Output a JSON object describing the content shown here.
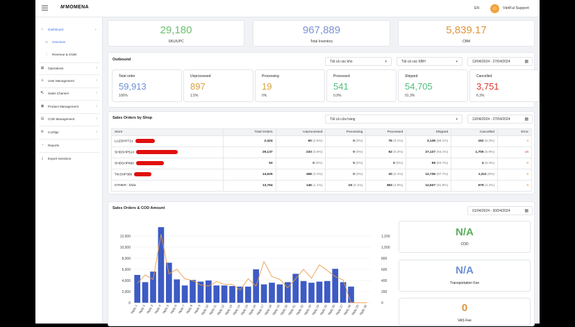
{
  "header": {
    "brand": "MOMENA",
    "lang": "EN",
    "user": "VietFul Support"
  },
  "sidebar": {
    "items": [
      {
        "label": "Dashboard",
        "icon": "home-icon",
        "chevron": "⌄"
      },
      {
        "label": "Overview",
        "icon": "monitor-icon"
      },
      {
        "label": "Revenue & Order",
        "icon": "chart-icon"
      },
      {
        "label": "Operations",
        "icon": "grid-icon",
        "chevron": "‹"
      },
      {
        "label": "User Management",
        "icon": "user-icon",
        "chevron": "‹"
      },
      {
        "label": "Sales Channel",
        "icon": "cart-icon",
        "chevron": "‹"
      },
      {
        "label": "Product Management",
        "icon": "box-icon",
        "chevron": "‹"
      },
      {
        "label": "COD Management",
        "icon": "cash-icon",
        "chevron": "‹"
      },
      {
        "label": "Configs",
        "icon": "gear-icon",
        "chevron": "‹"
      },
      {
        "label": "Reports",
        "icon": "report-icon"
      },
      {
        "label": "Export Sessions",
        "icon": "download-icon"
      }
    ]
  },
  "top_metrics": [
    {
      "value": "29,180",
      "label": "SKU/UPC",
      "color": "#6bbf6b"
    },
    {
      "value": "967,889",
      "label": "Total Inventory",
      "color": "#7b93d6"
    },
    {
      "value": "5,839.17",
      "label": "CBM",
      "color": "#e0953a"
    }
  ],
  "outbound": {
    "title": "Outbound",
    "warehouse_select": "Tất cả các kho",
    "channel_select": "Tất cả các KBH",
    "date_range": "13/04/2024 - 27/04/2024",
    "stats": [
      {
        "title": "Total order",
        "value": "59,913",
        "pct": "100%",
        "color": "#6b8fd6"
      },
      {
        "title": "Unprocessed",
        "value": "897",
        "pct": "1.5%",
        "color": "#d9a03a"
      },
      {
        "title": "Processing",
        "value": "19",
        "pct": "0%",
        "color": "#d9a03a"
      },
      {
        "title": "Processed",
        "value": "541",
        "pct": "0.9%",
        "color": "#4cbf7a"
      },
      {
        "title": "Shipped",
        "value": "54,705",
        "pct": "91.3%",
        "color": "#4cbf7a"
      },
      {
        "title": "Cancelled",
        "value": "3,751",
        "pct": "6.3%",
        "color": "#d9342b"
      }
    ]
  },
  "sales_by_shop": {
    "title": "Sales Orders by Shop",
    "shop_select": "Tất cả cửa hàng",
    "date_range": "13/04/2024 - 27/04/2024",
    "columns": [
      "Store",
      "Total Orders",
      "Unprocessed",
      "Processing",
      "Processed",
      "Shipped",
      "Cancelled",
      "Error"
    ],
    "rows": [
      {
        "store": "LAZSHP721",
        "total": "2,424",
        "unp": "60",
        "unp_pct": "(2.5%)",
        "proc": "0",
        "proc_pct": "(0%)",
        "prd": "76",
        "prd_pct": "(3.1%)",
        "ship": "2,136",
        "ship_pct": "(88.1%)",
        "canc": "152",
        "canc_pct": "(6.3%)",
        "err": "4"
      },
      {
        "store": "SHDSHP514",
        "total": "29,137",
        "unp": "233",
        "unp_pct": "(0.8%)",
        "proc": "0",
        "proc_pct": "(0%)",
        "prd": "62",
        "prd_pct": "(0.2%)",
        "ship": "27,137",
        "ship_pct": "(93.1%)",
        "canc": "1,705",
        "canc_pct": "(5.9%)",
        "err": "16"
      },
      {
        "store": "SHDSHP660",
        "total": "63",
        "unp": "0",
        "unp_pct": "(0%)",
        "proc": "0",
        "proc_pct": "(0%)",
        "prd": "0",
        "prd_pct": "(0%)",
        "ship": "59",
        "ship_pct": "(93.7%)",
        "canc": "4",
        "canc_pct": "(6.3%)",
        "err": "0"
      },
      {
        "store": "TIKSHP380",
        "total": "14,525",
        "unp": "458",
        "unp_pct": "(3.2%)",
        "proc": "0",
        "proc_pct": "(0%)",
        "prd": "20",
        "prd_pct": "(0.1%)",
        "ship": "12,736",
        "ship_pct": "(87.7%)",
        "canc": "1,311",
        "canc_pct": "(9%)",
        "err": "0"
      },
      {
        "store": "OTHER - khác",
        "total": "13,764",
        "unp": "146",
        "unp_pct": "(1.1%)",
        "proc": "19",
        "proc_pct": "(0.1%)",
        "prd": "383",
        "prd_pct": "(2.8%)",
        "ship": "12,637",
        "ship_pct": "(91.8%)",
        "canc": "579",
        "canc_pct": "(4.2%)",
        "err": "0"
      }
    ]
  },
  "sales_cod": {
    "title": "Sales Orders & COD Amount",
    "date_range": "01/04/2024 - 30/04/2024",
    "metrics": [
      {
        "value": "N/A",
        "label": "COD",
        "color": "#5aae5a"
      },
      {
        "value": "N/A",
        "label": "Transportation Fee",
        "color": "#6b8fd6"
      },
      {
        "value": "0",
        "label": "VAS Fee",
        "color": "#e0953a"
      }
    ]
  },
  "chart_data": {
    "type": "bar",
    "categories": [
      "Ngày 1",
      "Ngày 2",
      "Ngày 3",
      "Ngày 4",
      "Ngày 5",
      "Ngày 6",
      "Ngày 7",
      "Ngày 8",
      "Ngày 9",
      "Ngày 10",
      "Ngày 11",
      "Ngày 12",
      "Ngày 13",
      "Ngày 14",
      "Ngày 15",
      "Ngày 16",
      "Ngày 17",
      "Ngày 18",
      "Ngày 19",
      "Ngày 20",
      "Ngày 21",
      "Ngày 22",
      "Ngày 23",
      "Ngày 24",
      "Ngày 25",
      "Ngày 26",
      "Ngày 27",
      "Ngày 28",
      "Ngày 29",
      "Ngày 30"
    ],
    "series": [
      {
        "type": "bar",
        "axis": "left",
        "color": "#3d5bc4",
        "values": [
          5000,
          3700,
          5600,
          13600,
          7200,
          4200,
          3100,
          4100,
          3800,
          4000,
          3100,
          3100,
          3000,
          2900,
          2900,
          6000,
          3300,
          3600,
          3300,
          3700,
          5200,
          3900,
          3600,
          3800,
          3900,
          6100,
          3700,
          2900,
          0,
          0
        ]
      },
      {
        "type": "line",
        "axis": "right",
        "color": "#e89c4a",
        "values": [
          350,
          500,
          420,
          1230,
          520,
          600,
          430,
          400,
          320,
          300,
          380,
          330,
          330,
          230,
          430,
          300,
          740,
          470,
          420,
          270,
          430,
          600,
          440,
          680,
          580,
          470,
          410,
          0,
          0,
          0
        ]
      }
    ],
    "yleft": {
      "ticks": [
        "0",
        "2,000",
        "4,000",
        "6,000",
        "8,000",
        "10,000",
        "12,000"
      ],
      "max": 14000
    },
    "yright": {
      "ticks": [
        "0",
        "200",
        "400",
        "600",
        "800",
        "1,000",
        "1,200"
      ],
      "max": 1400
    }
  }
}
